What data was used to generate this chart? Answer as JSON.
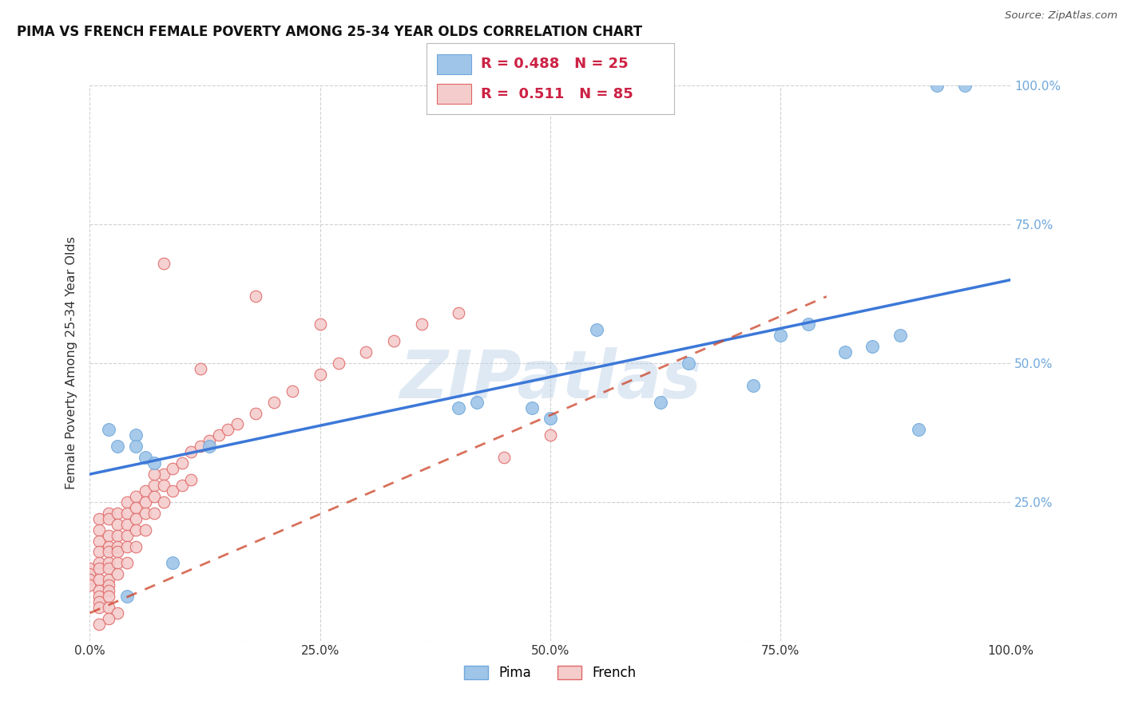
{
  "title": "PIMA VS FRENCH FEMALE POVERTY AMONG 25-34 YEAR OLDS CORRELATION CHART",
  "source": "Source: ZipAtlas.com",
  "ylabel": "Female Poverty Among 25-34 Year Olds",
  "xlim": [
    0.0,
    1.0
  ],
  "ylim": [
    0.0,
    1.0
  ],
  "xticks": [
    0.0,
    0.25,
    0.5,
    0.75,
    1.0
  ],
  "yticks": [
    0.0,
    0.25,
    0.5,
    0.75,
    1.0
  ],
  "xticklabels": [
    "0.0%",
    "25.0%",
    "50.0%",
    "75.0%",
    "100.0%"
  ],
  "yticklabels_right": [
    "",
    "25.0%",
    "50.0%",
    "75.0%",
    "100.0%"
  ],
  "pima_color": "#9fc5e8",
  "pima_edge_color": "#6fa8dc",
  "french_color": "#f4cccc",
  "french_edge_color": "#e06666",
  "pima_line_color": "#3c78d8",
  "french_line_color": "#cc4125",
  "pima_scatter_x": [
    0.02,
    0.03,
    0.04,
    0.05,
    0.05,
    0.06,
    0.07,
    0.09,
    0.13,
    0.4,
    0.42,
    0.5,
    0.55,
    0.62,
    0.72,
    0.75,
    0.82,
    0.85,
    0.88,
    0.9,
    0.92,
    0.65,
    0.48,
    0.78,
    0.95
  ],
  "pima_scatter_y": [
    0.38,
    0.35,
    0.08,
    0.37,
    0.35,
    0.33,
    0.32,
    0.14,
    0.35,
    0.42,
    0.43,
    0.4,
    0.56,
    0.43,
    0.46,
    0.55,
    0.52,
    0.53,
    0.55,
    0.38,
    1.0,
    0.5,
    0.42,
    0.57,
    1.0
  ],
  "french_scatter_x": [
    0.0,
    0.0,
    0.0,
    0.0,
    0.01,
    0.01,
    0.01,
    0.01,
    0.01,
    0.01,
    0.01,
    0.01,
    0.01,
    0.01,
    0.01,
    0.02,
    0.02,
    0.02,
    0.02,
    0.02,
    0.02,
    0.02,
    0.02,
    0.02,
    0.02,
    0.02,
    0.02,
    0.03,
    0.03,
    0.03,
    0.03,
    0.03,
    0.03,
    0.03,
    0.04,
    0.04,
    0.04,
    0.04,
    0.04,
    0.04,
    0.05,
    0.05,
    0.05,
    0.05,
    0.05,
    0.06,
    0.06,
    0.06,
    0.06,
    0.07,
    0.07,
    0.07,
    0.08,
    0.08,
    0.08,
    0.09,
    0.09,
    0.1,
    0.1,
    0.11,
    0.11,
    0.12,
    0.13,
    0.14,
    0.15,
    0.16,
    0.18,
    0.2,
    0.22,
    0.25,
    0.27,
    0.3,
    0.33,
    0.36,
    0.4,
    0.25,
    0.18,
    0.08,
    0.12,
    0.07,
    0.03,
    0.02,
    0.01,
    0.5,
    0.45
  ],
  "french_scatter_y": [
    0.13,
    0.12,
    0.11,
    0.1,
    0.22,
    0.2,
    0.18,
    0.16,
    0.14,
    0.13,
    0.11,
    0.09,
    0.08,
    0.07,
    0.06,
    0.23,
    0.22,
    0.19,
    0.17,
    0.16,
    0.14,
    0.13,
    0.11,
    0.1,
    0.09,
    0.08,
    0.06,
    0.23,
    0.21,
    0.19,
    0.17,
    0.16,
    0.14,
    0.12,
    0.25,
    0.23,
    0.21,
    0.19,
    0.17,
    0.14,
    0.26,
    0.24,
    0.22,
    0.2,
    0.17,
    0.27,
    0.25,
    0.23,
    0.2,
    0.28,
    0.26,
    0.23,
    0.3,
    0.28,
    0.25,
    0.31,
    0.27,
    0.32,
    0.28,
    0.34,
    0.29,
    0.35,
    0.36,
    0.37,
    0.38,
    0.39,
    0.41,
    0.43,
    0.45,
    0.48,
    0.5,
    0.52,
    0.54,
    0.57,
    0.59,
    0.57,
    0.62,
    0.68,
    0.49,
    0.3,
    0.05,
    0.04,
    0.03,
    0.37,
    0.33
  ],
  "pima_line_x0": 0.0,
  "pima_line_y0": 0.3,
  "pima_line_x1": 1.0,
  "pima_line_y1": 0.65,
  "french_line_x0": 0.0,
  "french_line_y0": 0.05,
  "french_line_x1": 0.8,
  "french_line_y1": 0.62,
  "watermark_text": "ZIPatlas",
  "background_color": "#ffffff",
  "grid_color": "#cccccc",
  "legend_title_pima": "R = 0.488   N = 25",
  "legend_title_french": "R =  0.511   N = 85"
}
